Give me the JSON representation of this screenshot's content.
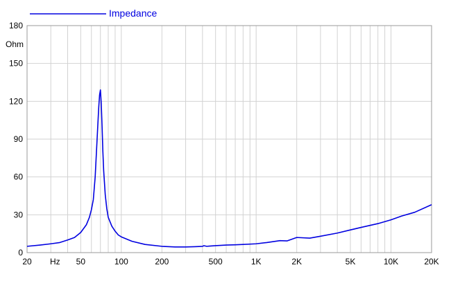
{
  "chart_data": {
    "type": "line",
    "x_scale": "log",
    "xlim": [
      20,
      20000
    ],
    "ylim": [
      0,
      180
    ],
    "grid": true,
    "legend_position": "top-left",
    "ylabel": "Ohm",
    "xlabel": "Hz",
    "x_ticks": [
      {
        "value": 20,
        "label": "20"
      },
      {
        "value": 50,
        "label": "50"
      },
      {
        "value": 100,
        "label": "100"
      },
      {
        "value": 200,
        "label": "200"
      },
      {
        "value": 500,
        "label": "500"
      },
      {
        "value": 1000,
        "label": "1K"
      },
      {
        "value": 2000,
        "label": "2K"
      },
      {
        "value": 5000,
        "label": "5K"
      },
      {
        "value": 10000,
        "label": "10K"
      },
      {
        "value": 20000,
        "label": "20K"
      }
    ],
    "y_ticks": [
      0,
      30,
      60,
      90,
      120,
      150,
      180
    ],
    "series": [
      {
        "name": "Impedance",
        "color": "#0000e0",
        "x": [
          20,
          25,
          30,
          35,
          40,
          45,
          50,
          55,
          58,
          60,
          62,
          64,
          66,
          68,
          69,
          70,
          71,
          72,
          73,
          74,
          76,
          78,
          80,
          85,
          90,
          95,
          100,
          120,
          150,
          200,
          250,
          300,
          350,
          400,
          410,
          430,
          450,
          500,
          600,
          700,
          800,
          1000,
          1200,
          1500,
          1700,
          2000,
          2500,
          3000,
          4000,
          5000,
          6000,
          8000,
          10000,
          12000,
          15000,
          20000
        ],
        "y": [
          5,
          6,
          7,
          8,
          10,
          12,
          16,
          22,
          28,
          34,
          42,
          60,
          88,
          115,
          125,
          129,
          118,
          100,
          80,
          65,
          46,
          35,
          28,
          21,
          17,
          14,
          12.5,
          9,
          6.5,
          5,
          4.5,
          4.5,
          4.7,
          5,
          5.5,
          5,
          5.2,
          5.5,
          6,
          6.2,
          6.5,
          7,
          8,
          9.5,
          9.3,
          12,
          11.5,
          13,
          15.5,
          18,
          20,
          23,
          26,
          29,
          32,
          38
        ]
      }
    ]
  }
}
